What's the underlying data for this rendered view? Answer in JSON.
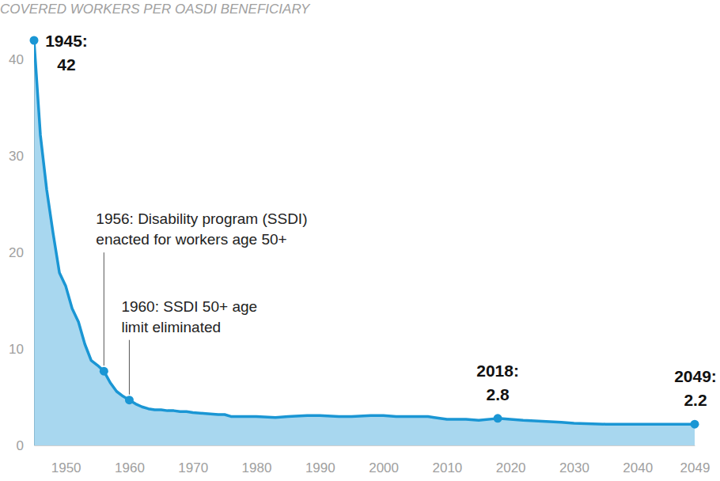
{
  "chart_data": {
    "type": "area",
    "title": "COVERED WORKERS PER OASDI BENEFICIARY",
    "x": [
      1945,
      1946,
      1947,
      1948,
      1949,
      1950,
      1951,
      1952,
      1953,
      1954,
      1955,
      1956,
      1957,
      1958,
      1959,
      1960,
      1961,
      1962,
      1963,
      1964,
      1965,
      1966,
      1967,
      1968,
      1969,
      1970,
      1972,
      1974,
      1975,
      1976,
      1980,
      1983,
      1985,
      1988,
      1990,
      1993,
      1995,
      1998,
      2000,
      2002,
      2007,
      2008,
      2010,
      2013,
      2015,
      2018,
      2020,
      2022,
      2025,
      2028,
      2030,
      2035,
      2040,
      2045,
      2049
    ],
    "values": [
      42,
      32.2,
      26.5,
      22,
      17.9,
      16.5,
      14.2,
      12.8,
      10.5,
      8.8,
      8.3,
      7.7,
      6.5,
      5.6,
      5.1,
      4.7,
      4.3,
      4.0,
      3.8,
      3.7,
      3.7,
      3.6,
      3.6,
      3.5,
      3.5,
      3.4,
      3.3,
      3.2,
      3.2,
      3.0,
      3.0,
      2.9,
      3.0,
      3.1,
      3.1,
      3.0,
      3.0,
      3.1,
      3.1,
      3.0,
      3.0,
      2.9,
      2.7,
      2.7,
      2.6,
      2.8,
      2.7,
      2.6,
      2.5,
      2.4,
      2.3,
      2.2,
      2.2,
      2.2,
      2.2
    ],
    "color": "#1a96d4",
    "xlim": [
      1945,
      2049
    ],
    "xticks": [
      1950,
      1960,
      1970,
      1980,
      1990,
      2000,
      2010,
      2020,
      2030,
      2040,
      2049
    ],
    "ylim": [
      0,
      42
    ],
    "yticks": [
      0,
      10,
      20,
      30,
      40
    ],
    "grid": false,
    "annotations": [
      {
        "type": "label",
        "x": 1945,
        "y": 42,
        "text": [
          "1945:",
          "42"
        ]
      },
      {
        "type": "callout",
        "x": 1956,
        "y": 7.7,
        "text": [
          "1956: Disability program (SSDI)",
          "enacted for workers age 50+"
        ]
      },
      {
        "type": "callout",
        "x": 1960,
        "y": 4.7,
        "text": [
          "1960: SSDI 50+ age",
          "limit eliminated"
        ]
      },
      {
        "type": "label",
        "x": 2018,
        "y": 2.8,
        "text": [
          "2018:",
          "2.8"
        ]
      },
      {
        "type": "label",
        "x": 2049,
        "y": 2.2,
        "text": [
          "2049:",
          "2.2"
        ]
      }
    ]
  }
}
